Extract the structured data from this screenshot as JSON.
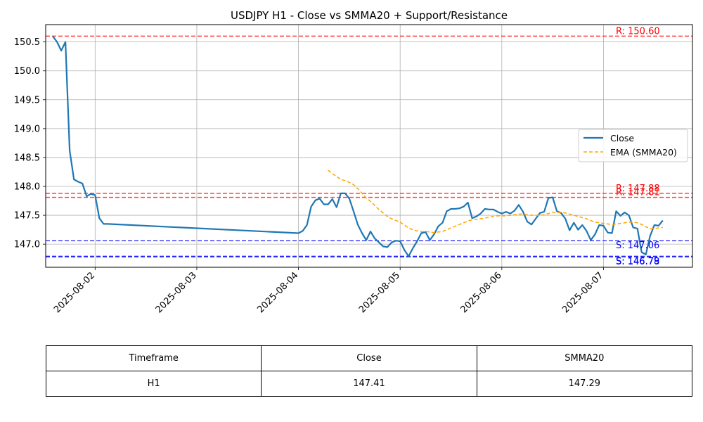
{
  "chart_data": {
    "type": "line",
    "title": "USDJPY H1 - Close vs SMMA20 + Support/Resistance",
    "x_tick_labels": [
      "2025-08-02",
      "2025-08-03",
      "2025-08-04",
      "2025-08-05",
      "2025-08-06",
      "2025-08-07"
    ],
    "y_tick_labels": [
      "147.0",
      "147.5",
      "148.0",
      "148.5",
      "149.0",
      "149.5",
      "150.0",
      "150.5"
    ],
    "ylim": [
      146.6,
      150.8
    ],
    "xlim": [
      "2025-08-01 12:20",
      "2025-08-07 21:00"
    ],
    "grid": true,
    "legend": {
      "placement": "right"
    },
    "series": [
      {
        "name": "Close",
        "color": "#1f77b4",
        "style": "solid",
        "points": [
          [
            "2025-08-01 14:00",
            150.6
          ],
          [
            "2025-08-01 15:00",
            150.5
          ],
          [
            "2025-08-01 16:00",
            150.35
          ],
          [
            "2025-08-01 17:00",
            150.5
          ],
          [
            "2025-08-01 18:00",
            148.62
          ],
          [
            "2025-08-01 19:00",
            148.12
          ],
          [
            "2025-08-01 20:00",
            148.08
          ],
          [
            "2025-08-01 21:00",
            148.05
          ],
          [
            "2025-08-01 22:00",
            147.83
          ],
          [
            "2025-08-01 23:00",
            147.87
          ],
          [
            "2025-08-02 00:00",
            147.85
          ],
          [
            "2025-08-02 01:00",
            147.45
          ],
          [
            "2025-08-02 02:00",
            147.35
          ],
          [
            "2025-08-02 03:00",
            147.35
          ],
          [
            "2025-08-04 00:00",
            147.19
          ],
          [
            "2025-08-04 01:00",
            147.23
          ],
          [
            "2025-08-04 02:00",
            147.33
          ],
          [
            "2025-08-04 03:00",
            147.65
          ],
          [
            "2025-08-04 04:00",
            147.76
          ],
          [
            "2025-08-04 05:00",
            147.79
          ],
          [
            "2025-08-04 06:00",
            147.69
          ],
          [
            "2025-08-04 07:00",
            147.69
          ],
          [
            "2025-08-04 08:00",
            147.78
          ],
          [
            "2025-08-04 09:00",
            147.64
          ],
          [
            "2025-08-04 10:00",
            147.88
          ],
          [
            "2025-08-04 11:00",
            147.88
          ],
          [
            "2025-08-04 12:00",
            147.79
          ],
          [
            "2025-08-04 13:00",
            147.57
          ],
          [
            "2025-08-04 14:00",
            147.34
          ],
          [
            "2025-08-04 15:00",
            147.19
          ],
          [
            "2025-08-04 16:00",
            147.07
          ],
          [
            "2025-08-04 17:00",
            147.22
          ],
          [
            "2025-08-04 18:00",
            147.1
          ],
          [
            "2025-08-04 19:00",
            147.03
          ],
          [
            "2025-08-04 20:00",
            146.96
          ],
          [
            "2025-08-04 21:00",
            146.95
          ],
          [
            "2025-08-04 22:00",
            147.03
          ],
          [
            "2025-08-04 23:00",
            147.06
          ],
          [
            "2025-08-05 00:00",
            147.05
          ],
          [
            "2025-08-05 01:00",
            146.9
          ],
          [
            "2025-08-05 02:00",
            146.79
          ],
          [
            "2025-08-05 03:00",
            146.93
          ],
          [
            "2025-08-05 04:00",
            147.05
          ],
          [
            "2025-08-05 05:00",
            147.19
          ],
          [
            "2025-08-05 06:00",
            147.21
          ],
          [
            "2025-08-05 07:00",
            147.07
          ],
          [
            "2025-08-05 08:00",
            147.17
          ],
          [
            "2025-08-05 09:00",
            147.31
          ],
          [
            "2025-08-05 10:00",
            147.37
          ],
          [
            "2025-08-05 11:00",
            147.57
          ],
          [
            "2025-08-05 12:00",
            147.61
          ],
          [
            "2025-08-05 13:00",
            147.61
          ],
          [
            "2025-08-05 14:00",
            147.62
          ],
          [
            "2025-08-05 15:00",
            147.65
          ],
          [
            "2025-08-05 16:00",
            147.72
          ],
          [
            "2025-08-05 17:00",
            147.45
          ],
          [
            "2025-08-05 18:00",
            147.48
          ],
          [
            "2025-08-05 19:00",
            147.53
          ],
          [
            "2025-08-05 20:00",
            147.61
          ],
          [
            "2025-08-05 21:00",
            147.6
          ],
          [
            "2025-08-05 22:00",
            147.6
          ],
          [
            "2025-08-05 23:00",
            147.56
          ],
          [
            "2025-08-06 00:00",
            147.53
          ],
          [
            "2025-08-06 01:00",
            147.56
          ],
          [
            "2025-08-06 02:00",
            147.53
          ],
          [
            "2025-08-06 03:00",
            147.58
          ],
          [
            "2025-08-06 04:00",
            147.68
          ],
          [
            "2025-08-06 05:00",
            147.56
          ],
          [
            "2025-08-06 06:00",
            147.39
          ],
          [
            "2025-08-06 07:00",
            147.34
          ],
          [
            "2025-08-06 08:00",
            147.44
          ],
          [
            "2025-08-06 09:00",
            147.54
          ],
          [
            "2025-08-06 10:00",
            147.56
          ],
          [
            "2025-08-06 11:00",
            147.8
          ],
          [
            "2025-08-06 12:00",
            147.81
          ],
          [
            "2025-08-06 13:00",
            147.57
          ],
          [
            "2025-08-06 14:00",
            147.54
          ],
          [
            "2025-08-06 15:00",
            147.44
          ],
          [
            "2025-08-06 16:00",
            147.24
          ],
          [
            "2025-08-06 17:00",
            147.37
          ],
          [
            "2025-08-06 18:00",
            147.25
          ],
          [
            "2025-08-06 19:00",
            147.33
          ],
          [
            "2025-08-06 20:00",
            147.23
          ],
          [
            "2025-08-06 21:00",
            147.07
          ],
          [
            "2025-08-06 22:00",
            147.17
          ],
          [
            "2025-08-06 23:00",
            147.33
          ],
          [
            "2025-08-07 00:00",
            147.32
          ],
          [
            "2025-08-07 01:00",
            147.2
          ],
          [
            "2025-08-07 02:00",
            147.19
          ],
          [
            "2025-08-07 03:00",
            147.57
          ],
          [
            "2025-08-07 04:00",
            147.49
          ],
          [
            "2025-08-07 05:00",
            147.55
          ],
          [
            "2025-08-07 06:00",
            147.5
          ],
          [
            "2025-08-07 07:00",
            147.29
          ],
          [
            "2025-08-07 08:00",
            147.27
          ],
          [
            "2025-08-07 09:00",
            146.86
          ],
          [
            "2025-08-07 10:00",
            146.82
          ],
          [
            "2025-08-07 11:00",
            147.14
          ],
          [
            "2025-08-07 12:00",
            147.33
          ],
          [
            "2025-08-07 13:00",
            147.32
          ],
          [
            "2025-08-07 14:00",
            147.41
          ]
        ]
      },
      {
        "name": "EMA (SMMA20)",
        "color": "#ffa500",
        "style": "dashed",
        "points": [
          [
            "2025-08-04 07:00",
            148.28
          ],
          [
            "2025-08-04 08:00",
            148.22
          ],
          [
            "2025-08-04 09:00",
            148.17
          ],
          [
            "2025-08-04 10:00",
            148.12
          ],
          [
            "2025-08-04 11:00",
            148.1
          ],
          [
            "2025-08-04 12:00",
            148.07
          ],
          [
            "2025-08-04 13:00",
            148.03
          ],
          [
            "2025-08-04 14:00",
            147.96
          ],
          [
            "2025-08-04 15:00",
            147.88
          ],
          [
            "2025-08-04 16:00",
            147.8
          ],
          [
            "2025-08-04 17:00",
            147.74
          ],
          [
            "2025-08-04 18:00",
            147.67
          ],
          [
            "2025-08-04 19:00",
            147.6
          ],
          [
            "2025-08-04 20:00",
            147.54
          ],
          [
            "2025-08-04 21:00",
            147.48
          ],
          [
            "2025-08-04 22:00",
            147.44
          ],
          [
            "2025-08-04 23:00",
            147.41
          ],
          [
            "2025-08-05 00:00",
            147.38
          ],
          [
            "2025-08-05 01:00",
            147.33
          ],
          [
            "2025-08-05 02:00",
            147.28
          ],
          [
            "2025-08-05 03:00",
            147.25
          ],
          [
            "2025-08-05 04:00",
            147.23
          ],
          [
            "2025-08-05 05:00",
            147.22
          ],
          [
            "2025-08-05 06:00",
            147.22
          ],
          [
            "2025-08-05 07:00",
            147.21
          ],
          [
            "2025-08-05 08:00",
            147.2
          ],
          [
            "2025-08-05 09:00",
            147.21
          ],
          [
            "2025-08-05 10:00",
            147.22
          ],
          [
            "2025-08-05 11:00",
            147.25
          ],
          [
            "2025-08-05 12:00",
            147.28
          ],
          [
            "2025-08-05 13:00",
            147.31
          ],
          [
            "2025-08-05 14:00",
            147.34
          ],
          [
            "2025-08-05 15:00",
            147.37
          ],
          [
            "2025-08-05 16:00",
            147.4
          ],
          [
            "2025-08-05 17:00",
            147.42
          ],
          [
            "2025-08-05 18:00",
            147.43
          ],
          [
            "2025-08-05 19:00",
            147.44
          ],
          [
            "2025-08-05 20:00",
            147.45
          ],
          [
            "2025-08-05 21:00",
            147.47
          ],
          [
            "2025-08-05 22:00",
            147.48
          ],
          [
            "2025-08-05 23:00",
            147.49
          ],
          [
            "2025-08-06 00:00",
            147.49
          ],
          [
            "2025-08-06 01:00",
            147.49
          ],
          [
            "2025-08-06 02:00",
            147.5
          ],
          [
            "2025-08-06 03:00",
            147.51
          ],
          [
            "2025-08-06 04:00",
            147.52
          ],
          [
            "2025-08-06 05:00",
            147.52
          ],
          [
            "2025-08-06 06:00",
            147.51
          ],
          [
            "2025-08-06 07:00",
            147.5
          ],
          [
            "2025-08-06 08:00",
            147.5
          ],
          [
            "2025-08-06 09:00",
            147.5
          ],
          [
            "2025-08-06 10:00",
            147.51
          ],
          [
            "2025-08-06 11:00",
            147.53
          ],
          [
            "2025-08-06 12:00",
            147.55
          ],
          [
            "2025-08-06 13:00",
            147.55
          ],
          [
            "2025-08-06 14:00",
            147.55
          ],
          [
            "2025-08-06 15:00",
            147.54
          ],
          [
            "2025-08-06 16:00",
            147.52
          ],
          [
            "2025-08-06 17:00",
            147.5
          ],
          [
            "2025-08-06 18:00",
            147.48
          ],
          [
            "2025-08-06 19:00",
            147.46
          ],
          [
            "2025-08-06 20:00",
            147.44
          ],
          [
            "2025-08-06 21:00",
            147.41
          ],
          [
            "2025-08-06 22:00",
            147.38
          ],
          [
            "2025-08-06 23:00",
            147.37
          ],
          [
            "2025-08-07 00:00",
            147.36
          ],
          [
            "2025-08-07 01:00",
            147.35
          ],
          [
            "2025-08-07 02:00",
            147.34
          ],
          [
            "2025-08-07 03:00",
            147.35
          ],
          [
            "2025-08-07 04:00",
            147.36
          ],
          [
            "2025-08-07 05:00",
            147.37
          ],
          [
            "2025-08-07 06:00",
            147.38
          ],
          [
            "2025-08-07 07:00",
            147.38
          ],
          [
            "2025-08-07 08:00",
            147.37
          ],
          [
            "2025-08-07 09:00",
            147.34
          ],
          [
            "2025-08-07 10:00",
            147.3
          ],
          [
            "2025-08-07 11:00",
            147.27
          ],
          [
            "2025-08-07 12:00",
            147.27
          ],
          [
            "2025-08-07 13:00",
            147.28
          ],
          [
            "2025-08-07 14:00",
            147.29
          ]
        ]
      }
    ],
    "levels": [
      {
        "kind": "resistance",
        "label": "R: 150.60",
        "value": 150.6,
        "color": "#ff0000"
      },
      {
        "kind": "resistance",
        "label": "R: 147.88",
        "value": 147.88,
        "color": "#ff0000"
      },
      {
        "kind": "resistance",
        "label": "R: 147.81",
        "value": 147.81,
        "color": "#ff0000"
      },
      {
        "kind": "support",
        "label": "S: 147.06",
        "value": 147.06,
        "color": "#0000ff"
      },
      {
        "kind": "support",
        "label": "S: 146.79",
        "value": 146.79,
        "color": "#0000ff"
      },
      {
        "kind": "support",
        "label": "S: 146.78",
        "value": 146.78,
        "color": "#0000ff"
      }
    ]
  },
  "table": {
    "headers": [
      "Timeframe",
      "Close",
      "SMMA20"
    ],
    "rows": [
      [
        "H1",
        "147.41",
        "147.29"
      ]
    ]
  }
}
